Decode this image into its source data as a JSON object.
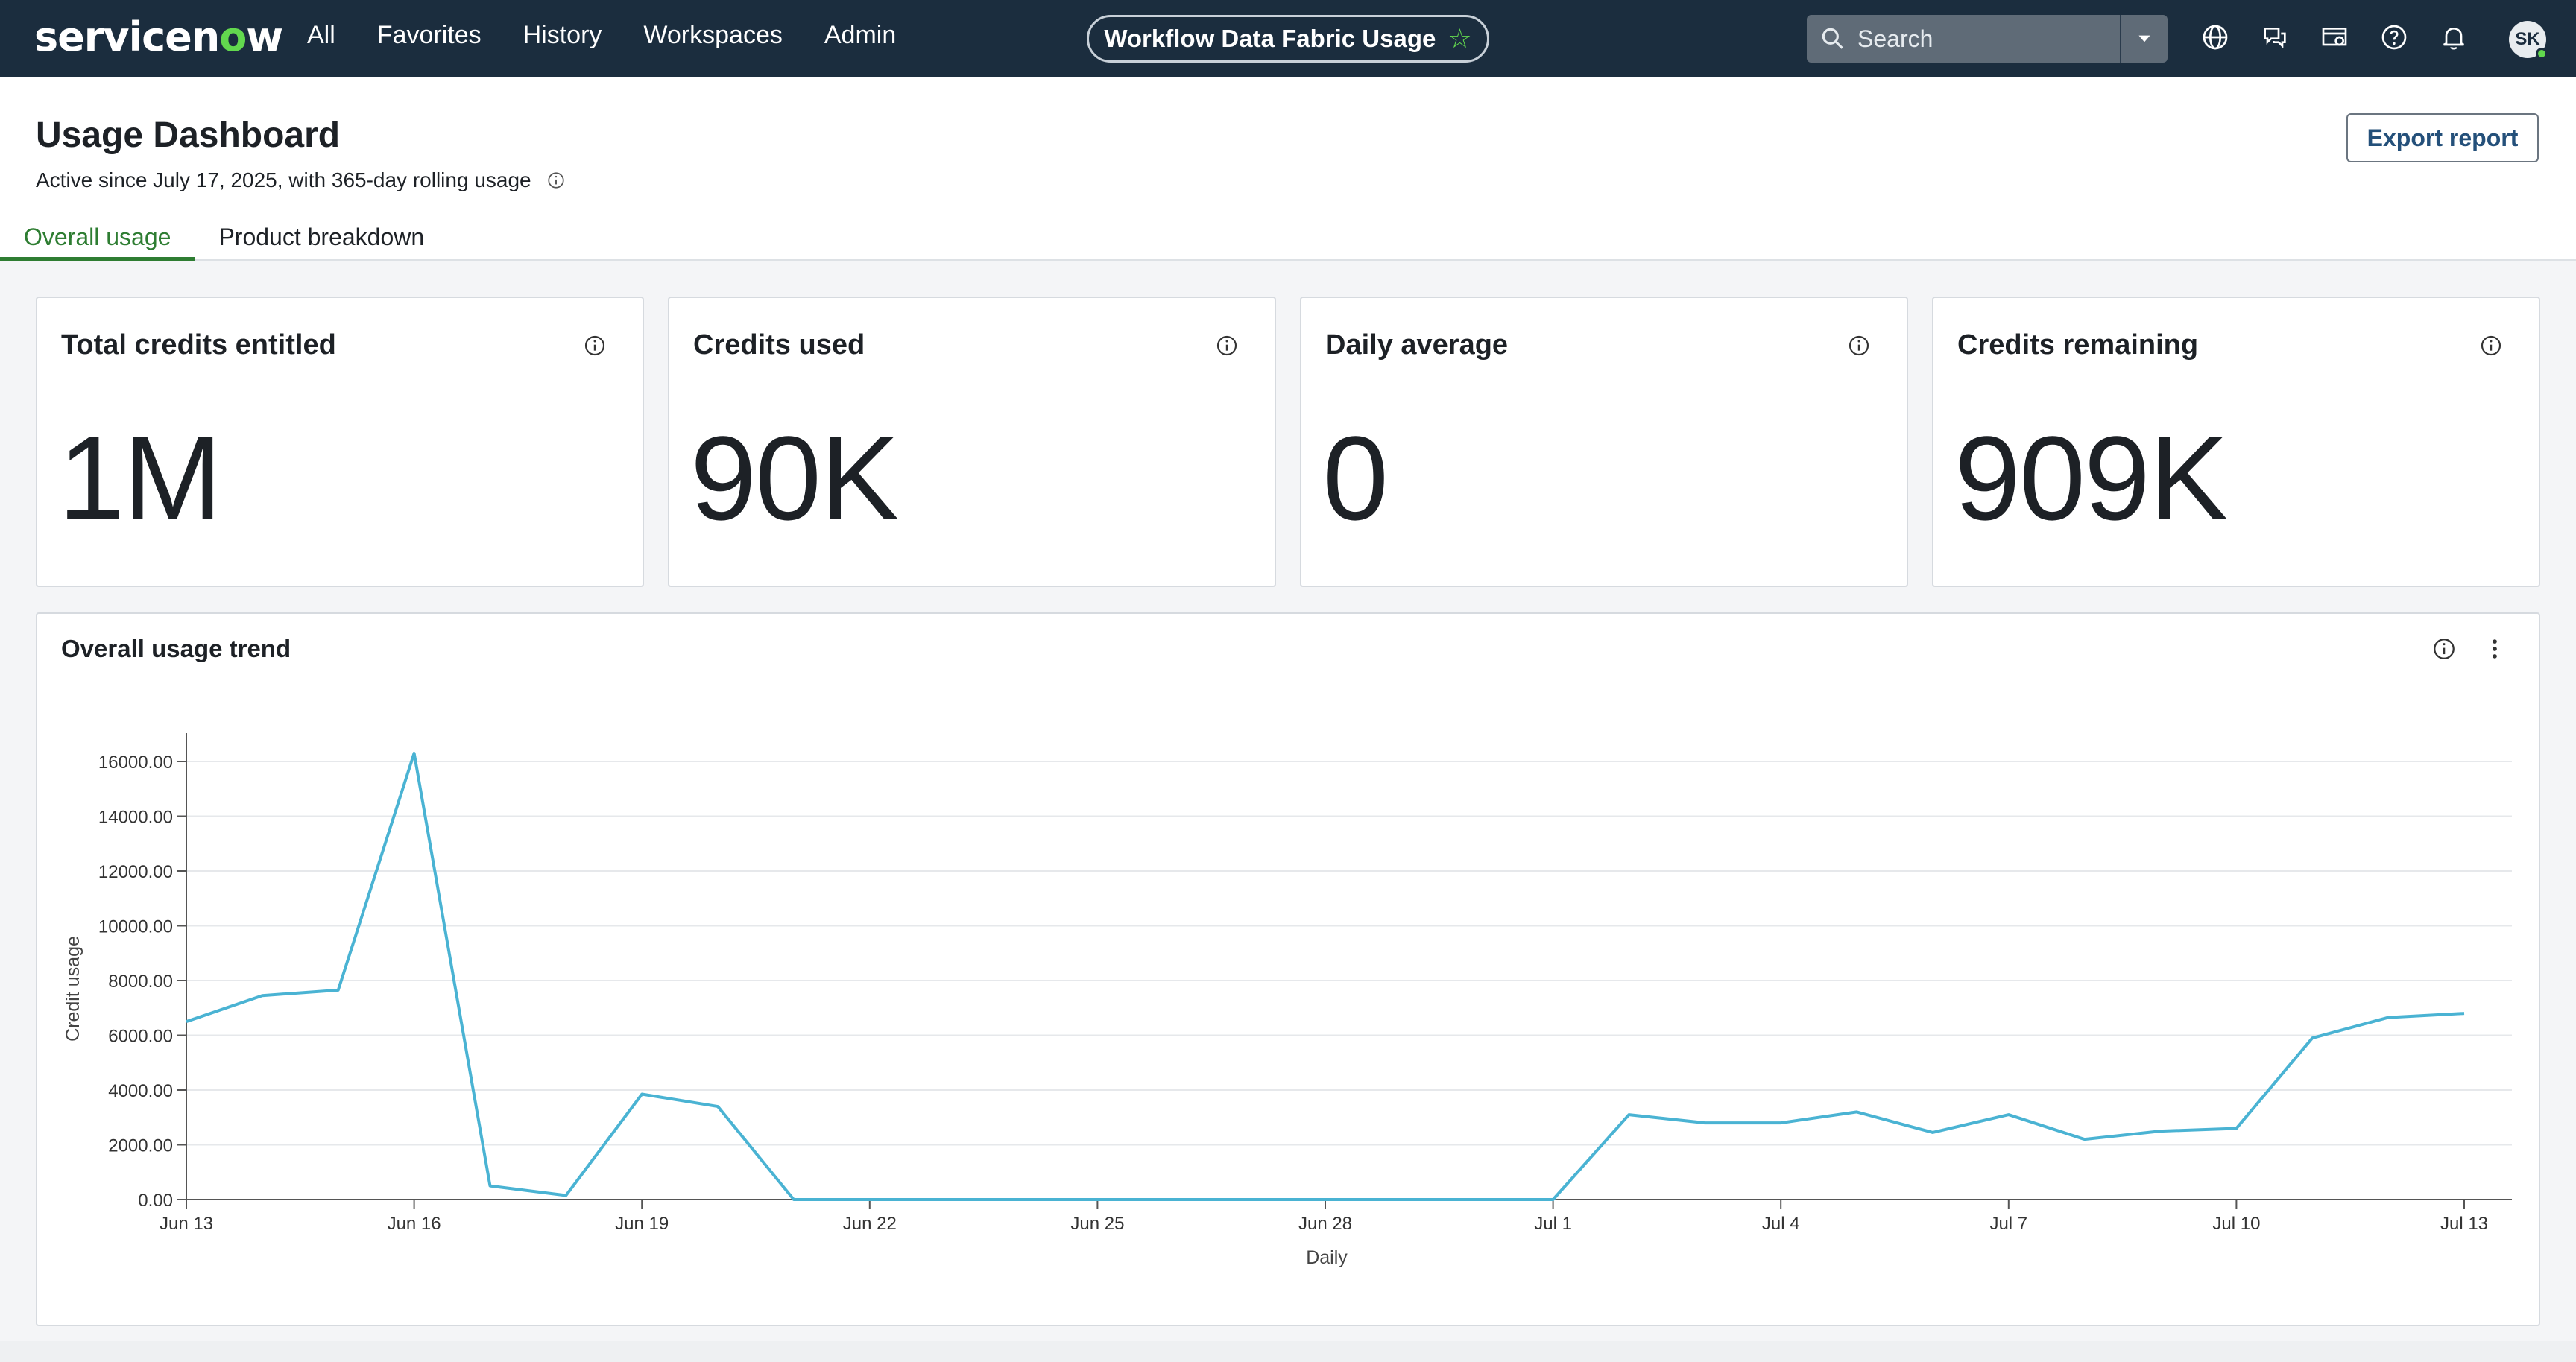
{
  "nav": {
    "logo": {
      "prefix": "servicen",
      "o": "o",
      "suffix": "w"
    },
    "menu": [
      "All",
      "Favorites",
      "History",
      "Workspaces",
      "Admin"
    ],
    "context_title": "Workflow Data Fabric Usage",
    "search_placeholder": "Search",
    "icons": [
      "globe-icon",
      "chat-icon",
      "dashboard-icon",
      "help-icon",
      "bell-icon"
    ],
    "avatar_initials": "SK",
    "colors": {
      "bg": "#1b2d3e",
      "accent": "#62d84e"
    }
  },
  "header": {
    "title": "Usage Dashboard",
    "subtitle": "Active since July 17, 2025, with 365-day rolling usage",
    "export_label": "Export report",
    "tabs": [
      {
        "label": "Overall usage",
        "active": true
      },
      {
        "label": "Product breakdown",
        "active": false
      }
    ]
  },
  "cards": [
    {
      "label": "Total credits entitled",
      "value": "1M"
    },
    {
      "label": "Credits used",
      "value": "90K"
    },
    {
      "label": "Daily average",
      "value": "0"
    },
    {
      "label": "Credits remaining",
      "value": "909K"
    }
  ],
  "trend": {
    "title": "Overall usage trend"
  },
  "chart_data": {
    "type": "line",
    "title": "Overall usage trend",
    "xlabel": "Daily",
    "ylabel": "Credit usage",
    "ylim": [
      0,
      16000
    ],
    "grid": true,
    "color": "#4ab3d3",
    "y_ticks": [
      "0.00",
      "2000.00",
      "4000.00",
      "6000.00",
      "8000.00",
      "10000.00",
      "12000.00",
      "14000.00",
      "16000.00"
    ],
    "x_ticks": [
      "Jun 13",
      "Jun 16",
      "Jun 19",
      "Jun 22",
      "Jun 25",
      "Jun 28",
      "Jul 1",
      "Jul 4",
      "Jul 7",
      "Jul 10",
      "Jul 13"
    ],
    "x": [
      "Jun 13",
      "Jun 14",
      "Jun 15",
      "Jun 16",
      "Jun 17",
      "Jun 18",
      "Jun 19",
      "Jun 20",
      "Jun 21",
      "Jun 22",
      "Jun 23",
      "Jun 24",
      "Jun 25",
      "Jun 26",
      "Jun 27",
      "Jun 28",
      "Jun 29",
      "Jun 30",
      "Jul 1",
      "Jul 2",
      "Jul 3",
      "Jul 4",
      "Jul 5",
      "Jul 6",
      "Jul 7",
      "Jul 8",
      "Jul 9",
      "Jul 10",
      "Jul 11",
      "Jul 12",
      "Jul 13"
    ],
    "values": [
      6500,
      7450,
      7650,
      16300,
      500,
      150,
      3850,
      3400,
      0,
      0,
      0,
      0,
      0,
      0,
      0,
      0,
      0,
      0,
      0,
      3100,
      2800,
      2800,
      3200,
      2450,
      3100,
      2200,
      2500,
      2600,
      5900,
      6650,
      6800
    ]
  }
}
